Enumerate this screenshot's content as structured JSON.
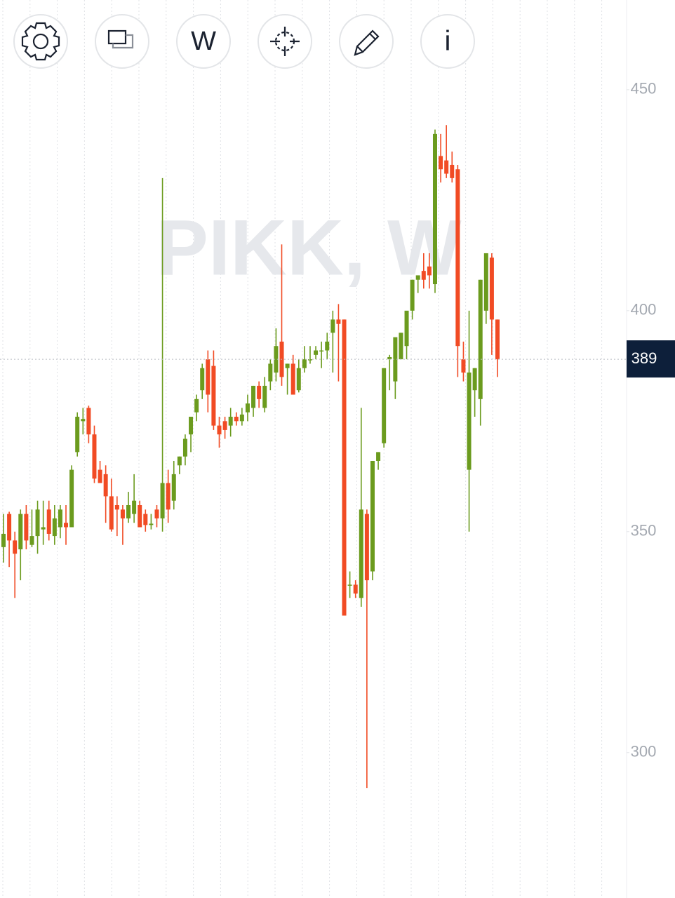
{
  "toolbar": {
    "interval": "W",
    "info": "i"
  },
  "chart_data": {
    "type": "candlestick",
    "title": "PIKK, W",
    "ylim": [
      267.1,
      470.3
    ],
    "yticks": [
      300,
      350,
      400,
      450
    ],
    "last_price": 389,
    "up_color": "#6b9b1e",
    "down_color": "#f14b24",
    "series": {
      "open": [
        346.5,
        354,
        348,
        346,
        354,
        347,
        349,
        350.5,
        355,
        349,
        351,
        352,
        351,
        368,
        375,
        378,
        372,
        364,
        363,
        358,
        356,
        355,
        353,
        354,
        356,
        354,
        351.5,
        355,
        353,
        361,
        357,
        365,
        367,
        372,
        377,
        382,
        389,
        387.5,
        374,
        375,
        374,
        376,
        375,
        377,
        378,
        383,
        378,
        384,
        386,
        393,
        387,
        388,
        382,
        387,
        389,
        390,
        391,
        391,
        395,
        398,
        398,
        338,
        338,
        335,
        354,
        341,
        366,
        370,
        389,
        384,
        389,
        392,
        400,
        407,
        409,
        410,
        406,
        435,
        434,
        433,
        432,
        389,
        364,
        382,
        380,
        400,
        412,
        398
      ],
      "high": [
        354,
        354.5,
        350,
        355,
        356,
        355,
        357,
        357,
        357,
        356,
        356,
        356,
        365,
        377,
        378,
        378.5,
        374,
        366,
        365,
        362,
        358,
        356,
        359,
        363,
        357,
        355,
        354,
        356,
        430,
        364,
        366,
        367,
        372,
        376,
        381,
        388,
        391,
        391,
        376,
        376,
        378,
        377,
        378,
        381,
        383,
        384,
        385,
        389,
        396,
        415,
        388,
        390,
        389,
        392,
        392,
        392,
        393,
        395,
        400,
        401.5,
        398,
        341,
        339,
        378,
        355,
        366,
        368,
        387,
        390,
        392,
        395,
        398,
        407,
        408,
        413,
        413,
        441,
        440,
        442,
        436,
        433,
        393,
        400,
        387,
        407,
        413,
        413,
        398
      ],
      "low": [
        343,
        342,
        335,
        339,
        346,
        346.5,
        345,
        347,
        348,
        347,
        348.5,
        347,
        351,
        367,
        372,
        370,
        361,
        361,
        352,
        350,
        349,
        347,
        352,
        352,
        351,
        350,
        350.5,
        351,
        350,
        352,
        355,
        363,
        365,
        368,
        375,
        380,
        377,
        373,
        369,
        371,
        371.5,
        374,
        374,
        375,
        376,
        378,
        377,
        382,
        384,
        383,
        381,
        381,
        381.5,
        386,
        388,
        389,
        387,
        389,
        386,
        384,
        331,
        335,
        335,
        333,
        292,
        339,
        364,
        369,
        382,
        380,
        389,
        389,
        398,
        404,
        405,
        405,
        404,
        429,
        430,
        429,
        385,
        384,
        350,
        376,
        374,
        397,
        390,
        385
      ],
      "close": [
        349.5,
        348,
        345,
        354,
        348,
        349,
        355,
        351,
        349.5,
        353,
        355,
        351,
        364,
        376,
        375.5,
        372,
        362,
        361,
        358,
        350.5,
        355,
        353,
        356,
        357,
        351,
        351.5,
        351.8,
        353,
        361,
        355,
        363,
        367,
        371,
        376,
        380,
        387,
        381,
        374,
        372,
        373,
        376,
        375,
        376.5,
        379,
        383,
        380,
        383,
        388,
        392,
        385,
        388,
        381,
        387,
        389,
        389,
        391,
        391,
        393,
        398,
        397,
        331,
        338,
        336,
        355,
        339,
        366,
        368,
        387,
        389.5,
        394,
        395,
        400,
        407,
        408,
        407,
        408,
        440,
        432,
        431,
        430,
        392,
        386,
        386,
        387,
        407,
        413,
        398,
        389
      ]
    }
  }
}
